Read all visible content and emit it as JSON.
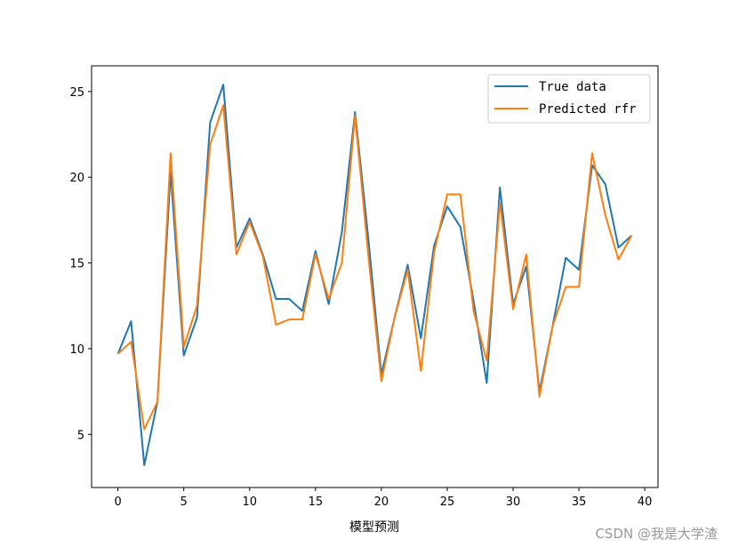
{
  "chart_data": {
    "type": "line",
    "title": "",
    "xlabel": "模型预测",
    "ylabel": "",
    "xlim": [
      -2,
      41
    ],
    "ylim": [
      1.9,
      26.5
    ],
    "xticks": [
      0,
      5,
      10,
      15,
      20,
      25,
      30,
      35,
      40
    ],
    "yticks": [
      5,
      10,
      15,
      20,
      25
    ],
    "grid": false,
    "legend_position": "top-right",
    "x": [
      0,
      1,
      2,
      3,
      4,
      5,
      6,
      7,
      8,
      9,
      10,
      11,
      12,
      13,
      14,
      15,
      16,
      17,
      18,
      19,
      20,
      21,
      22,
      23,
      24,
      25,
      26,
      27,
      28,
      29,
      30,
      31,
      32,
      33,
      34,
      35,
      36,
      37,
      38,
      39
    ],
    "series": [
      {
        "name": "True data",
        "color": "#1f77b4",
        "values": [
          9.7,
          11.6,
          3.2,
          6.9,
          20.3,
          9.6,
          11.8,
          23.2,
          25.4,
          15.9,
          17.6,
          15.5,
          12.9,
          12.9,
          12.2,
          15.7,
          12.6,
          16.8,
          23.8,
          16.5,
          8.5,
          11.8,
          14.9,
          10.6,
          16.0,
          18.3,
          17.1,
          12.8,
          8.0,
          19.4,
          12.6,
          14.8,
          7.5,
          11.3,
          15.3,
          14.6,
          20.7,
          19.6,
          15.9,
          16.6
        ]
      },
      {
        "name": "Predicted rfr",
        "color": "#ff7f0e",
        "values": [
          9.7,
          10.4,
          5.3,
          6.9,
          21.4,
          10.1,
          12.5,
          21.9,
          24.2,
          15.5,
          17.4,
          15.4,
          11.4,
          11.7,
          11.7,
          15.5,
          12.9,
          15.0,
          23.6,
          15.5,
          8.1,
          11.8,
          14.6,
          8.7,
          15.6,
          19.0,
          19.0,
          12.2,
          9.3,
          18.5,
          12.3,
          15.5,
          7.2,
          11.3,
          13.6,
          13.6,
          21.4,
          17.8,
          15.2,
          16.6
        ]
      }
    ]
  },
  "watermark": "CSDN @我是大学渣"
}
